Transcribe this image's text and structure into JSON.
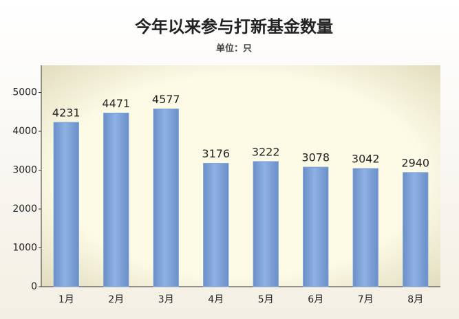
{
  "chart_data": {
    "type": "bar",
    "title": "今年以来参与打新基金数量",
    "subtitle": "单位：只",
    "categories": [
      "1月",
      "2月",
      "3月",
      "4月",
      "5月",
      "6月",
      "7月",
      "8月"
    ],
    "values": [
      4231,
      4471,
      4577,
      3176,
      3222,
      3078,
      3042,
      2940
    ],
    "color": "#7b9fd6",
    "ylim": [
      0,
      5700
    ],
    "yticks": [
      0,
      1000,
      2000,
      3000,
      4000,
      5000
    ],
    "grid": false
  }
}
